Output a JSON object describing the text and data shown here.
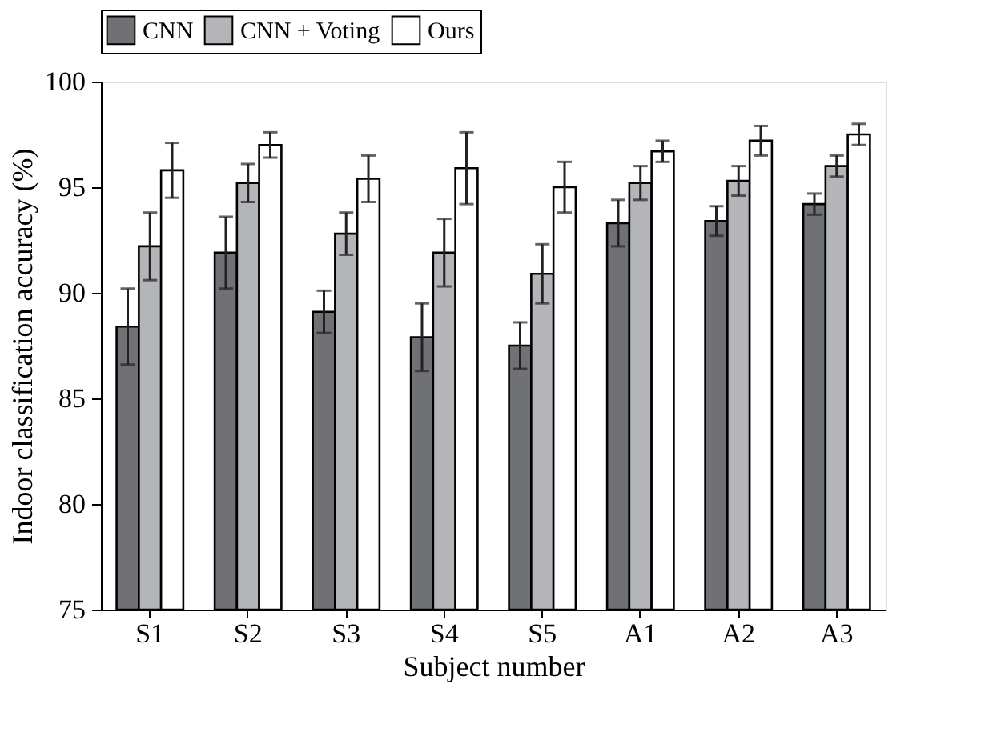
{
  "chart_data": {
    "type": "bar",
    "xlabel": "Subject number",
    "ylabel": "Indoor classification accuracy (%)",
    "categories": [
      "S1",
      "S2",
      "S3",
      "S4",
      "S5",
      "A1",
      "A2",
      "A3"
    ],
    "series": [
      {
        "name": "CNN",
        "color": "#707175",
        "values": [
          88.4,
          91.9,
          89.1,
          87.9,
          87.5,
          93.3,
          93.4,
          94.2
        ],
        "errors": [
          1.8,
          1.7,
          1.0,
          1.6,
          1.1,
          1.1,
          0.7,
          0.5
        ]
      },
      {
        "name": "CNN + Voting",
        "color": "#b4b5b9",
        "values": [
          92.2,
          95.2,
          92.8,
          91.9,
          90.9,
          95.2,
          95.3,
          96.0
        ],
        "errors": [
          1.6,
          0.9,
          1.0,
          1.6,
          1.4,
          0.8,
          0.7,
          0.5
        ]
      },
      {
        "name": "Ours",
        "color": "#ffffff",
        "values": [
          95.8,
          97.0,
          95.4,
          95.9,
          95.0,
          96.7,
          97.2,
          97.5
        ],
        "errors": [
          1.3,
          0.6,
          1.1,
          1.7,
          1.2,
          0.5,
          0.7,
          0.5
        ]
      }
    ],
    "ylim": [
      75,
      100
    ],
    "yticks": [
      75,
      80,
      85,
      90,
      95,
      100
    ],
    "grid": false,
    "legend": "top"
  }
}
